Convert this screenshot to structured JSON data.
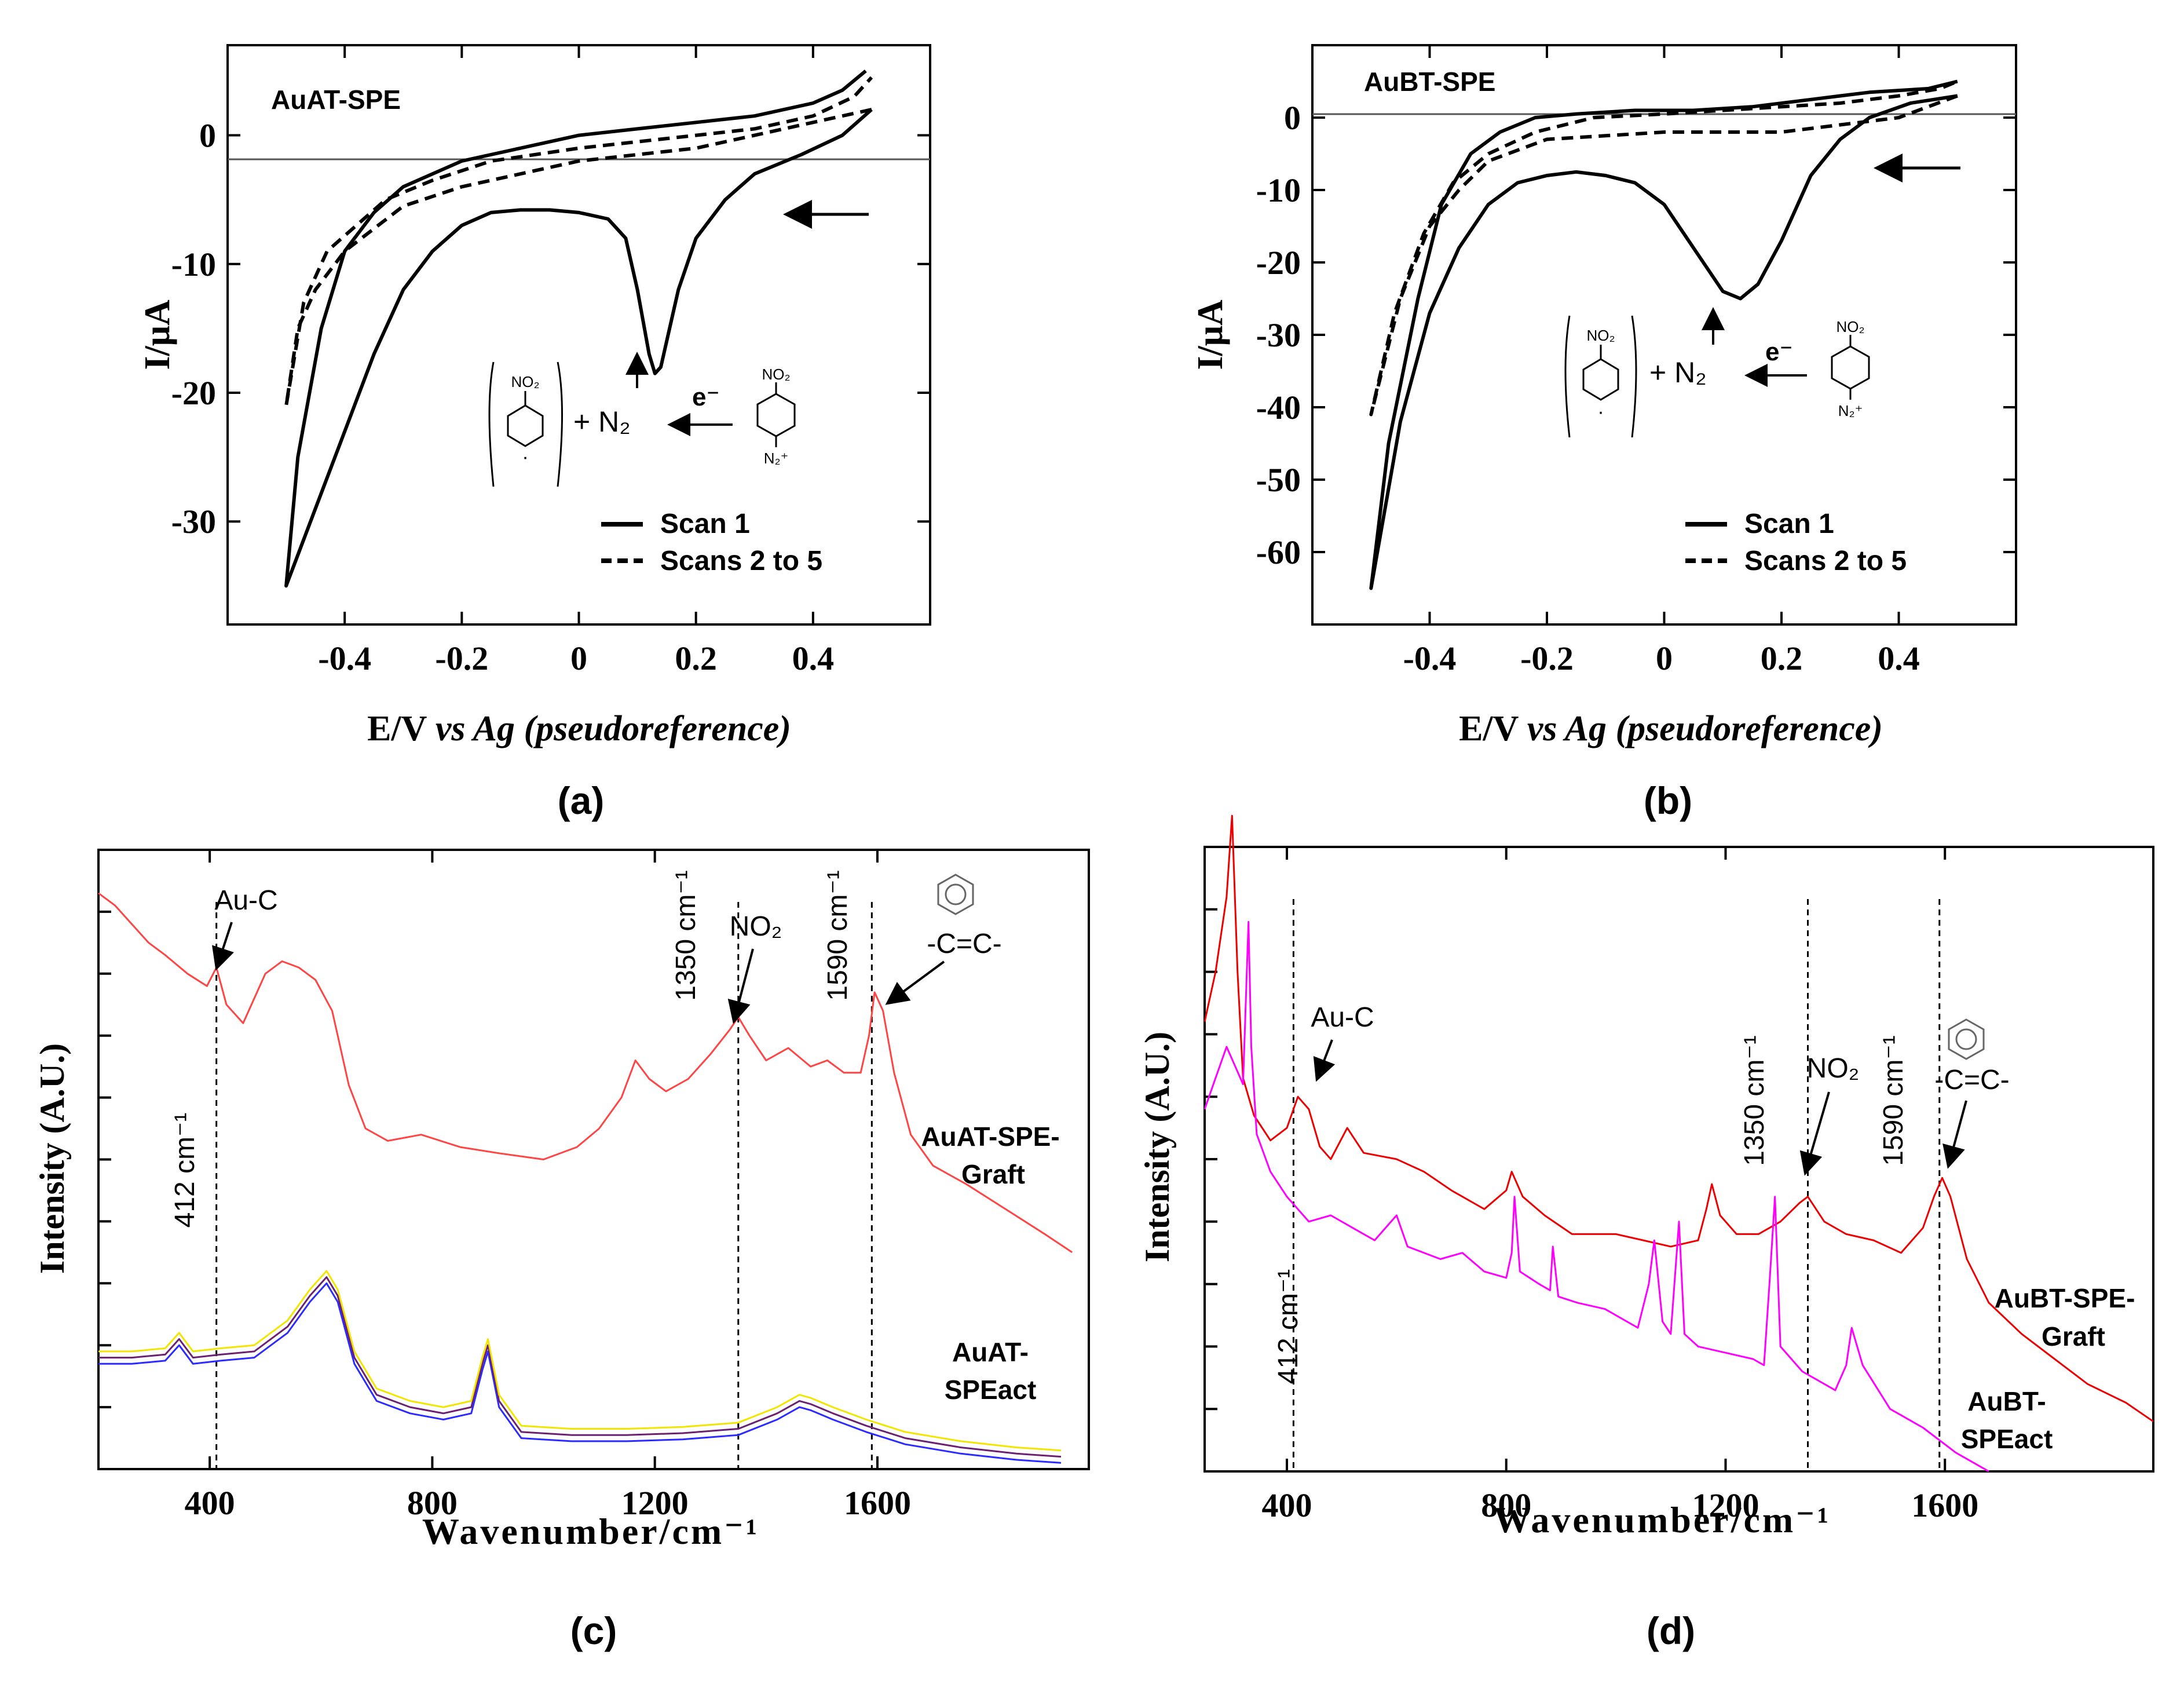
{
  "figure": {
    "panel_labels": [
      "(a)",
      "(b)",
      "(c)",
      "(d)"
    ]
  },
  "chart_data": [
    {
      "id": "a",
      "type": "line",
      "title": "AuAT-SPE",
      "xlabel_main": "E/V",
      "xlabel_italic": "vs Ag (pseudoreference)",
      "ylabel": "I/μA",
      "xlim": [
        -0.6,
        0.6
      ],
      "ylim": [
        -38,
        7
      ],
      "xticks": [
        -0.4,
        -0.2,
        0,
        0.2,
        0.4
      ],
      "xtick_labels": [
        "-0.4",
        "-0.2",
        "0",
        "0.2",
        "0.4"
      ],
      "yticks": [
        -30,
        -20,
        -10,
        0
      ],
      "ytick_labels": [
        "-30",
        "-20",
        "-10",
        "0"
      ],
      "legend": [
        "Scan 1",
        "Scans 2 to 5"
      ],
      "scheme": {
        "electron": "e⁻",
        "product": "+ N₂",
        "radical_group": "NO₂",
        "diazonium_top": "NO₂",
        "diazonium_bottom": "N₂⁺"
      },
      "series": [
        {
          "name": "Scan 1",
          "style": "solid",
          "x": [
            0.5,
            0.45,
            0.38,
            0.3,
            0.25,
            0.2,
            0.17,
            0.15,
            0.14,
            0.13,
            0.12,
            0.1,
            0.08,
            0.05,
            0.02,
            0,
            -0.05,
            -0.1,
            -0.15,
            -0.2,
            -0.25,
            -0.3,
            -0.35,
            -0.4,
            -0.45,
            -0.5,
            -0.48,
            -0.44,
            -0.4,
            -0.35,
            -0.3,
            -0.2,
            -0.1,
            0,
            0.1,
            0.2,
            0.3,
            0.4,
            0.45,
            0.49
          ],
          "y": [
            2,
            0,
            -1.5,
            -3,
            -5,
            -8,
            -12,
            -16,
            -18,
            -18.5,
            -17,
            -12,
            -8,
            -6.5,
            -6.2,
            -6,
            -5.8,
            -5.8,
            -6,
            -7,
            -9,
            -12,
            -17,
            -23,
            -29,
            -35,
            -25,
            -15,
            -9,
            -6,
            -4,
            -2,
            -1,
            0,
            0.5,
            1,
            1.5,
            2.5,
            3.5,
            5
          ]
        },
        {
          "name": "Scans 2 to 5",
          "style": "dashed",
          "x": [
            0.5,
            0.4,
            0.3,
            0.2,
            0.1,
            0,
            -0.1,
            -0.2,
            -0.3,
            -0.4,
            -0.45,
            -0.48,
            -0.5,
            -0.47,
            -0.43,
            -0.38,
            -0.33,
            -0.25,
            -0.15,
            0,
            0.1,
            0.2,
            0.3,
            0.4,
            0.47,
            0.5
          ],
          "y": [
            2,
            1,
            0,
            -1,
            -1.5,
            -2,
            -3,
            -4,
            -5.5,
            -9,
            -12,
            -15,
            -21,
            -13,
            -9,
            -7,
            -5,
            -3.5,
            -2,
            -1,
            -0.5,
            0,
            0.5,
            1.5,
            3,
            4.5
          ]
        }
      ]
    },
    {
      "id": "b",
      "type": "line",
      "title": "AuBT-SPE",
      "xlabel_main": "E/V",
      "xlabel_italic": "vs Ag (pseudoreference)",
      "ylabel": "I/μA",
      "xlim": [
        -0.6,
        0.6
      ],
      "ylim": [
        -70,
        10
      ],
      "xticks": [
        -0.4,
        -0.2,
        0,
        0.2,
        0.4
      ],
      "xtick_labels": [
        "-0.4",
        "-0.2",
        "0",
        "0.2",
        "0.4"
      ],
      "yticks": [
        -60,
        -50,
        -40,
        -30,
        -20,
        -10,
        0
      ],
      "ytick_labels": [
        "-60",
        "-50",
        "-40",
        "-30",
        "-20",
        "-10",
        "0"
      ],
      "legend": [
        "Scan 1",
        "Scans 2 to 5"
      ],
      "scheme": {
        "electron": "e⁻",
        "product": "+ N₂",
        "radical_group": "NO₂",
        "diazonium_top": "NO₂",
        "diazonium_bottom": "N₂⁺"
      },
      "series": [
        {
          "name": "Scan 1",
          "style": "solid",
          "x": [
            0.5,
            0.42,
            0.35,
            0.3,
            0.25,
            0.2,
            0.16,
            0.13,
            0.1,
            0.05,
            0,
            -0.05,
            -0.1,
            -0.15,
            -0.2,
            -0.25,
            -0.3,
            -0.35,
            -0.4,
            -0.45,
            -0.5,
            -0.47,
            -0.42,
            -0.38,
            -0.33,
            -0.28,
            -0.22,
            -0.15,
            -0.05,
            0.05,
            0.15,
            0.25,
            0.35,
            0.45,
            0.5
          ],
          "y": [
            3,
            2,
            0,
            -3,
            -8,
            -17,
            -23,
            -25,
            -24,
            -18,
            -12,
            -9,
            -8,
            -7.5,
            -8,
            -9,
            -12,
            -18,
            -27,
            -42,
            -65,
            -45,
            -25,
            -12,
            -5,
            -2,
            0,
            0.5,
            1,
            1,
            1.5,
            2.5,
            3.5,
            4,
            5
          ]
        },
        {
          "name": "Scans 2 to 5",
          "style": "dashed",
          "x": [
            0.5,
            0.4,
            0.3,
            0.2,
            0.1,
            0,
            -0.1,
            -0.2,
            -0.3,
            -0.35,
            -0.4,
            -0.45,
            -0.5,
            -0.46,
            -0.41,
            -0.36,
            -0.3,
            -0.22,
            -0.12,
            0,
            0.1,
            0.2,
            0.3,
            0.4,
            0.47,
            0.5
          ],
          "y": [
            3,
            0,
            -1,
            -2,
            -2,
            -2,
            -2.5,
            -3,
            -6,
            -10,
            -15,
            -25,
            -41,
            -27,
            -16,
            -9,
            -5,
            -2,
            0,
            0.5,
            1,
            1.5,
            2,
            3,
            4,
            5
          ]
        }
      ]
    },
    {
      "id": "c",
      "type": "line",
      "title": "",
      "xlabel": "Wavenumber/cm⁻¹",
      "ylabel": "Intensity (A.U.)",
      "xlim": [
        200,
        1980
      ],
      "ylim": [
        0,
        100
      ],
      "xticks": [
        400,
        800,
        1200,
        1600
      ],
      "xtick_labels": [
        "400",
        "800",
        "1200",
        "1600"
      ],
      "yticks": [
        10,
        20,
        30,
        40,
        50,
        60,
        70,
        80,
        90
      ],
      "annotations": {
        "peak_412": "412 cm⁻¹",
        "au_c": "Au-C",
        "peak_1350": "1350 cm⁻¹",
        "no2": "NO₂",
        "peak_1590": "1590 cm⁻¹",
        "cc": "-C=C-"
      },
      "vlines": [
        412,
        1350,
        1590
      ],
      "series_labels": [
        "AuAT-SPE-",
        "Graft",
        "AuAT-",
        "SPEact"
      ],
      "series": [
        {
          "name": "AuAT-SPE-Graft",
          "color": "#ff4444",
          "x": [
            200,
            230,
            260,
            290,
            320,
            360,
            395,
            412,
            430,
            460,
            500,
            530,
            560,
            590,
            620,
            650,
            680,
            720,
            780,
            850,
            920,
            1000,
            1060,
            1100,
            1140,
            1165,
            1190,
            1220,
            1260,
            1300,
            1335,
            1350,
            1370,
            1400,
            1440,
            1480,
            1510,
            1540,
            1570,
            1585,
            1595,
            1610,
            1630,
            1660,
            1700,
            1760,
            1830,
            1900,
            1950
          ],
          "y": [
            93,
            91,
            88,
            85,
            83,
            80,
            78,
            81,
            75,
            72,
            80,
            82,
            81,
            79,
            74,
            62,
            55,
            53,
            54,
            52,
            51,
            50,
            52,
            55,
            60,
            66,
            63,
            61,
            63,
            67,
            71,
            73,
            70,
            66,
            68,
            65,
            66,
            64,
            64,
            70,
            77,
            74,
            64,
            54,
            49,
            46,
            42,
            38,
            35
          ]
        },
        {
          "name": "AuAT-SPEact (blue)",
          "color": "#2b2bff",
          "x": [
            200,
            260,
            320,
            345,
            370,
            420,
            480,
            540,
            580,
            610,
            630,
            660,
            700,
            760,
            820,
            870,
            890,
            900,
            920,
            960,
            1050,
            1150,
            1250,
            1350,
            1420,
            1460,
            1480,
            1520,
            1580,
            1650,
            1750,
            1850,
            1930
          ],
          "y": [
            17,
            17,
            17.5,
            20,
            17,
            17.5,
            18,
            22,
            27,
            30,
            27,
            17,
            11,
            9,
            8,
            9,
            16,
            19,
            10,
            5,
            4.5,
            4.5,
            4.8,
            5.5,
            8,
            10,
            9.5,
            8,
            6,
            4,
            2.5,
            1.5,
            1
          ]
        },
        {
          "name": "AuAT-SPEact (purple)",
          "color": "#6b2070",
          "x": [
            200,
            260,
            320,
            345,
            370,
            420,
            480,
            540,
            580,
            610,
            630,
            660,
            700,
            760,
            820,
            870,
            890,
            900,
            920,
            960,
            1050,
            1150,
            1250,
            1350,
            1420,
            1460,
            1480,
            1520,
            1580,
            1650,
            1750,
            1850,
            1930
          ],
          "y": [
            18,
            18,
            18.5,
            21,
            18,
            18.5,
            19,
            23,
            28,
            31,
            28,
            18,
            12,
            10,
            9,
            10,
            17,
            20,
            11,
            6,
            5.5,
            5.5,
            5.8,
            6.5,
            9,
            11,
            10.5,
            9,
            7,
            5,
            3.5,
            2.5,
            2
          ]
        },
        {
          "name": "AuAT-SPEact (yellow)",
          "color": "#f2e600",
          "x": [
            200,
            260,
            320,
            345,
            370,
            420,
            480,
            540,
            580,
            610,
            630,
            660,
            700,
            760,
            820,
            870,
            890,
            900,
            920,
            960,
            1050,
            1150,
            1250,
            1350,
            1420,
            1460,
            1480,
            1520,
            1580,
            1650,
            1750,
            1850,
            1930
          ],
          "y": [
            19,
            19,
            19.5,
            22,
            19,
            19.5,
            20,
            24,
            29,
            32,
            29,
            19,
            13,
            11,
            10,
            11,
            18,
            21,
            12,
            7,
            6.5,
            6.5,
            6.8,
            7.5,
            10,
            12,
            11.5,
            10,
            8,
            6,
            4.5,
            3.5,
            3
          ]
        }
      ]
    },
    {
      "id": "d",
      "type": "line",
      "title": "",
      "xlabel": "Wavenumber/cm⁻¹",
      "ylabel": "Intensity (A.U.)",
      "xlim": [
        250,
        1980
      ],
      "ylim": [
        0,
        100
      ],
      "xticks": [
        400,
        800,
        1200,
        1600
      ],
      "xtick_labels": [
        "400",
        "800",
        "1200",
        "1600"
      ],
      "yticks": [
        10,
        20,
        30,
        40,
        50,
        60,
        70,
        80,
        90
      ],
      "annotations": {
        "peak_412": "412 cm⁻¹",
        "au_c": "Au-C",
        "peak_1350": "1350 cm⁻¹",
        "no2": "NO₂",
        "peak_1590": "1590 cm⁻¹",
        "cc": "-C=C-"
      },
      "vlines": [
        412,
        1350,
        1590
      ],
      "series_labels": [
        "AuBT-SPE-",
        "Graft",
        "AuBT-",
        "SPEact"
      ],
      "series": [
        {
          "name": "AuBT-SPE-Graft",
          "color": "#ee0000",
          "x": [
            250,
            270,
            290,
            300,
            310,
            320,
            340,
            370,
            400,
            420,
            440,
            460,
            480,
            510,
            540,
            600,
            650,
            700,
            760,
            800,
            810,
            830,
            870,
            920,
            1000,
            1050,
            1100,
            1150,
            1165,
            1175,
            1190,
            1220,
            1260,
            1300,
            1335,
            1350,
            1380,
            1420,
            1470,
            1520,
            1560,
            1580,
            1595,
            1610,
            1640,
            1680,
            1740,
            1800,
            1860,
            1930,
            1980
          ],
          "y": [
            72,
            80,
            92,
            105,
            80,
            63,
            57,
            53,
            55,
            60,
            58,
            52,
            50,
            55,
            51,
            50,
            48,
            45,
            42,
            45,
            48,
            44,
            41,
            38,
            38,
            37,
            36,
            37,
            42,
            46,
            41,
            38,
            38,
            40,
            43,
            44,
            40,
            38,
            37,
            35,
            39,
            44,
            47,
            44,
            34,
            27,
            22,
            18,
            14,
            11,
            8
          ]
        },
        {
          "name": "AuBT-SPEact",
          "color": "#ff00ff",
          "x": [
            250,
            270,
            290,
            305,
            320,
            330,
            335,
            345,
            370,
            400,
            440,
            480,
            520,
            560,
            590,
            600,
            620,
            680,
            720,
            760,
            800,
            810,
            815,
            825,
            860,
            880,
            885,
            895,
            930,
            980,
            1040,
            1060,
            1070,
            1085,
            1100,
            1110,
            1115,
            1125,
            1150,
            1200,
            1250,
            1270,
            1280,
            1290,
            1300,
            1340,
            1380,
            1400,
            1420,
            1430,
            1450,
            1500,
            1560,
            1620,
            1680
          ],
          "y": [
            58,
            63,
            68,
            65,
            62,
            88,
            68,
            54,
            48,
            44,
            40,
            41,
            39,
            37,
            40,
            41,
            36,
            34,
            35,
            32,
            31,
            35,
            44,
            32,
            30,
            29,
            36,
            28,
            27,
            26,
            23,
            30,
            37,
            24,
            22,
            34,
            40,
            22,
            20,
            19,
            18,
            17,
            30,
            44,
            20,
            16,
            14,
            13,
            17,
            23,
            17,
            10,
            7,
            3,
            0
          ]
        }
      ]
    }
  ]
}
